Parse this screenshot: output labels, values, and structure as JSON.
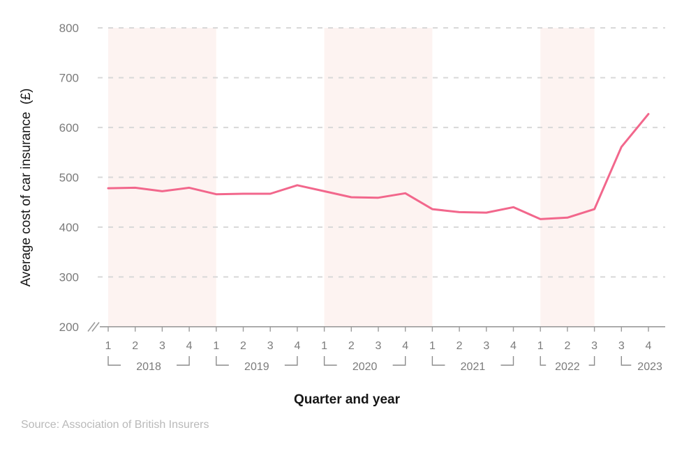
{
  "axis_titles": {
    "y": "Average cost of car insurance  (£)",
    "x": "Quarter and year"
  },
  "source": "Source: Association of British Insurers",
  "colors": {
    "line": "#f2678c",
    "band": "#fdf3f1",
    "grid": "#d8d8d8",
    "axis": "#9b9b9b",
    "bracket": "#8c8c8c",
    "tick_text": "#7b7b7b",
    "title_text": "#161616",
    "source_text": "#b9b9b9"
  },
  "chart_data": {
    "type": "line",
    "title": "",
    "xlabel": "Quarter and year",
    "ylabel": "Average cost of car insurance (£)",
    "ylim": [
      200,
      800
    ],
    "yticks": [
      200,
      300,
      400,
      500,
      600,
      700,
      800
    ],
    "y_axis_break_below": 200,
    "grid": "horizontal-dashed",
    "legend": "none",
    "series": [
      {
        "name": "Average cost of car insurance (£)",
        "points": [
          {
            "year": "2018",
            "quarter": "1",
            "value": 478
          },
          {
            "year": "2018",
            "quarter": "2",
            "value": 479
          },
          {
            "year": "2018",
            "quarter": "3",
            "value": 472
          },
          {
            "year": "2018",
            "quarter": "4",
            "value": 479
          },
          {
            "year": "2019",
            "quarter": "1",
            "value": 466
          },
          {
            "year": "2019",
            "quarter": "2",
            "value": 467
          },
          {
            "year": "2019",
            "quarter": "3",
            "value": 467
          },
          {
            "year": "2019",
            "quarter": "4",
            "value": 484
          },
          {
            "year": "2020",
            "quarter": "1",
            "value": 472
          },
          {
            "year": "2020",
            "quarter": "2",
            "value": 460
          },
          {
            "year": "2020",
            "quarter": "3",
            "value": 459
          },
          {
            "year": "2020",
            "quarter": "4",
            "value": 468
          },
          {
            "year": "2021",
            "quarter": "1",
            "value": 436
          },
          {
            "year": "2021",
            "quarter": "2",
            "value": 430
          },
          {
            "year": "2021",
            "quarter": "3",
            "value": 429
          },
          {
            "year": "2021",
            "quarter": "4",
            "value": 440
          },
          {
            "year": "2022",
            "quarter": "1",
            "value": 416
          },
          {
            "year": "2022",
            "quarter": "2",
            "value": 419
          },
          {
            "year": "2022",
            "quarter": "3",
            "value": 436
          },
          {
            "year": "2023",
            "quarter": "3",
            "value": 561
          },
          {
            "year": "2023",
            "quarter": "4",
            "value": 627
          }
        ]
      }
    ],
    "year_groups": [
      {
        "label": "2018",
        "tick_start": 0,
        "tick_end": 3,
        "close_bracket": true
      },
      {
        "label": "2019",
        "tick_start": 4,
        "tick_end": 7,
        "close_bracket": true
      },
      {
        "label": "2020",
        "tick_start": 8,
        "tick_end": 11,
        "close_bracket": true
      },
      {
        "label": "2021",
        "tick_start": 12,
        "tick_end": 15,
        "close_bracket": true
      },
      {
        "label": "2022",
        "tick_start": 16,
        "tick_end": 18,
        "close_bracket": true
      },
      {
        "label": "2023",
        "tick_start": 19,
        "tick_end": 20,
        "close_bracket": false
      }
    ],
    "shaded_tick_ranges": [
      {
        "from": 0,
        "to": 4
      },
      {
        "from": 8,
        "to": 12
      },
      {
        "from": 16,
        "to": 18
      }
    ]
  }
}
